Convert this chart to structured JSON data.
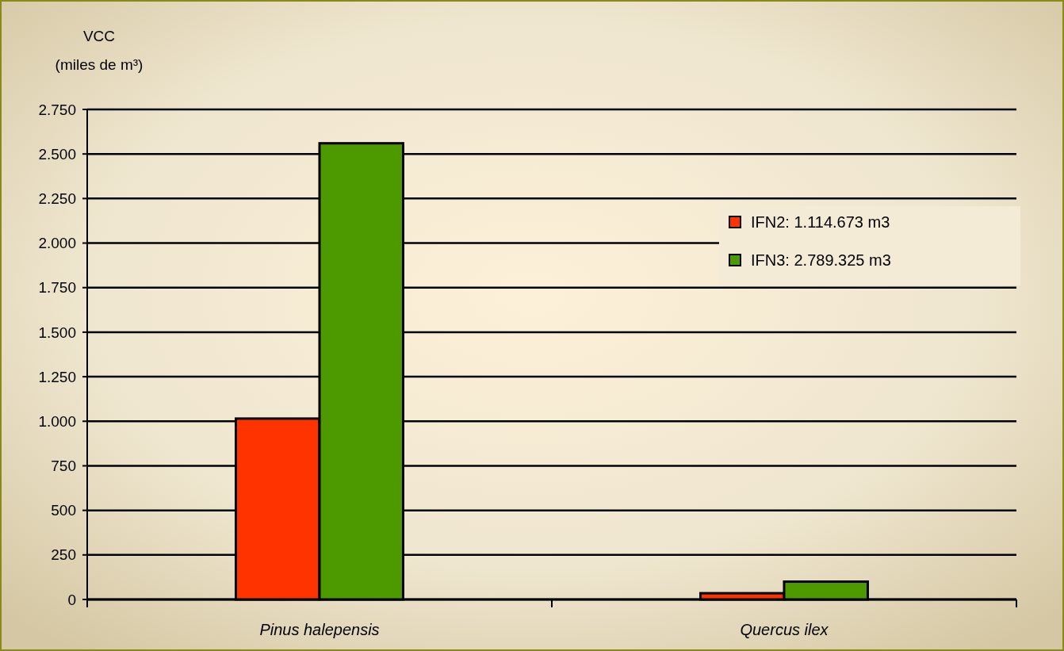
{
  "chart_data": {
    "type": "bar",
    "ylabel": "VCC\n(miles de m³)",
    "categories": [
      "Pinus halepensis",
      "Quercus ilex"
    ],
    "series": [
      {
        "name": "IFN2: 1.114.673 m3",
        "color": "#ff3300",
        "values": [
          1015,
          35
        ]
      },
      {
        "name": "IFN3: 2.789.325 m3",
        "color": "#4c9a00",
        "values": [
          2560,
          100
        ]
      }
    ],
    "ylim": [
      0,
      2750
    ],
    "yticks": [
      {
        "value": 0,
        "label": "0"
      },
      {
        "value": 250,
        "label": "250"
      },
      {
        "value": 500,
        "label": "500"
      },
      {
        "value": 750,
        "label": "750"
      },
      {
        "value": 1000,
        "label": "1.000"
      },
      {
        "value": 1250,
        "label": "1.250"
      },
      {
        "value": 1500,
        "label": "1.500"
      },
      {
        "value": 1750,
        "label": "1.750"
      },
      {
        "value": 2000,
        "label": "2.000"
      },
      {
        "value": 2250,
        "label": "2.250"
      },
      {
        "value": 2500,
        "label": "2.500"
      },
      {
        "value": 2750,
        "label": "2.750"
      }
    ],
    "grid": "y",
    "legend": "right"
  }
}
